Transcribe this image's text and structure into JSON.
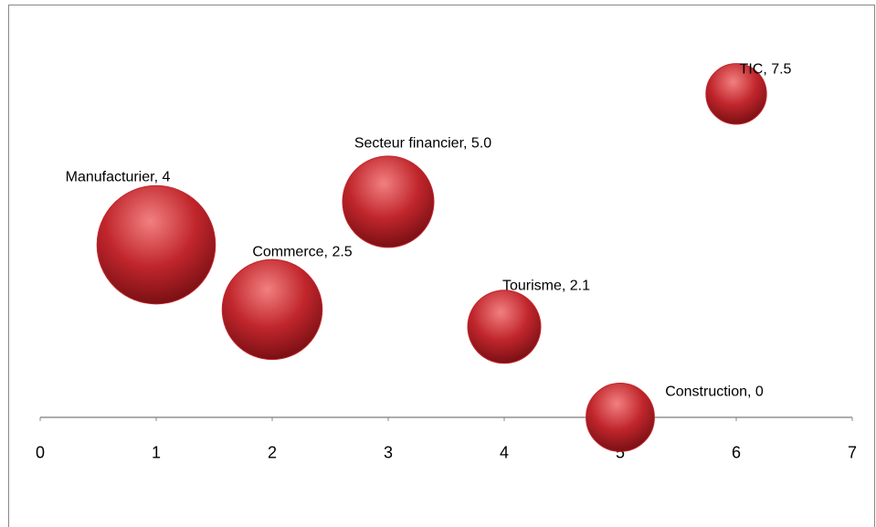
{
  "chart_data": {
    "type": "bubble",
    "x": [
      1,
      2,
      3,
      4,
      5,
      6
    ],
    "values": [
      4,
      2.5,
      5.0,
      2.1,
      0,
      7.5
    ],
    "sizes": [
      42,
      30,
      25,
      16,
      14,
      11
    ],
    "labels": [
      "Manufacturier, 4",
      "Commerce, 2.5",
      "Secteur financier, 5.0",
      "Tourisme, 2.1",
      "Construction, 0",
      "TIC, 7.5"
    ],
    "color": "#c0262c",
    "xlim": [
      0,
      7
    ],
    "xticks": [
      0,
      1,
      2,
      3,
      4,
      5,
      6,
      7
    ],
    "ylim": [
      -2.5,
      9
    ]
  }
}
